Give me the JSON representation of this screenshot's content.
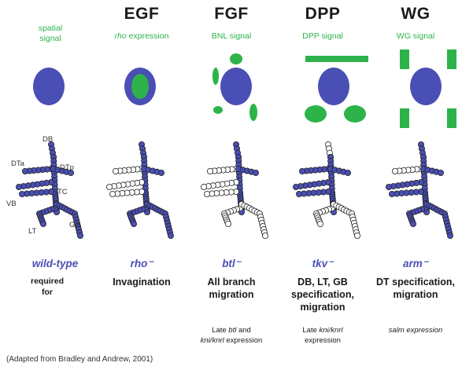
{
  "credit": "(Adapted from Bradley and Andrew, 2001)",
  "columns": [
    {
      "header": "",
      "signal": "spatial signal",
      "gene": "wild-type",
      "role": "required for",
      "late": ""
    },
    {
      "header": "EGF",
      "signal_italic": "rho",
      "signal_rest": " expression",
      "gene": "rho⁻",
      "role": "Invagination",
      "late": ""
    },
    {
      "header": "FGF",
      "signal": "BNL signal",
      "gene": "btl⁻",
      "role": "All branch migration",
      "late_line1_pre": "Late ",
      "late_line1_it": "btl",
      "late_line1_post": " and",
      "late_line2_it": "kni/knrl",
      "late_line2_post": " expression"
    },
    {
      "header": "DPP",
      "signal": "DPP signal",
      "gene": "tkv⁻",
      "role": "DB, LT, GB specification, migration",
      "late_line1_pre": "Late ",
      "late_line1_it": "kni/knrl",
      "late_line2_post": "expression"
    },
    {
      "header": "WG",
      "signal": "WG signal",
      "gene": "arm⁻",
      "role": "DT specification, migration",
      "late_it": "salm expression"
    }
  ],
  "branch_labels": {
    "DB": "DB",
    "DTa": "DTa",
    "DTp": "DTp",
    "TC": "TC",
    "VB": "VB",
    "LT": "LT",
    "GB": "GB"
  },
  "colors": {
    "blue": "#4a4fb5",
    "green": "#2db34a",
    "white_cell": "#ffffff"
  }
}
